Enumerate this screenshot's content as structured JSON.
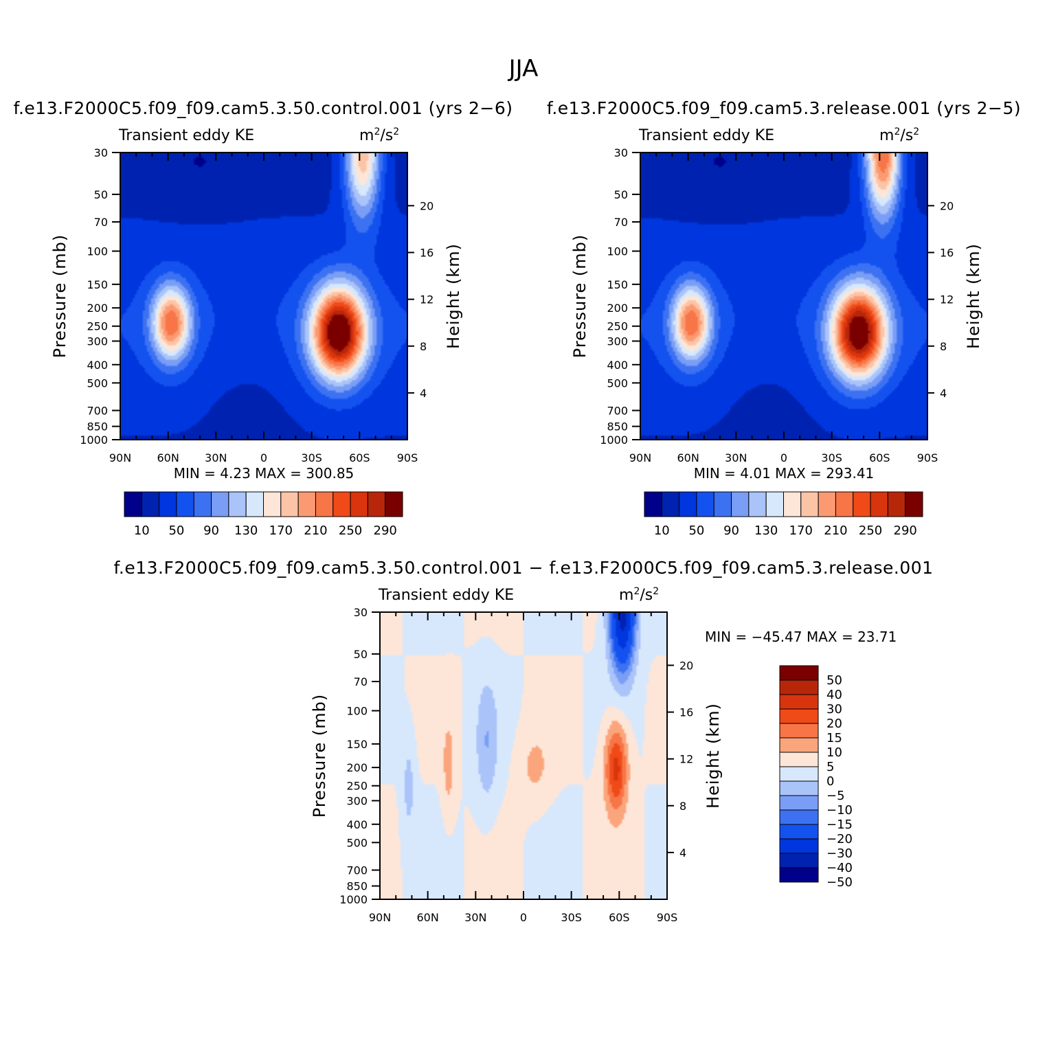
{
  "title": "JJA",
  "panels": [
    {
      "id": "control",
      "title": "f.e13.F2000C5.f09_f09.cam5.3.50.control.001 (yrs 2−6)",
      "left_string": "Transient eddy KE",
      "units_base": "m",
      "units_sup1": "2",
      "units_mid": "/s",
      "units_sup2": "2",
      "ylabel": "Pressure (mb)",
      "ylabel_right": "Height (km)",
      "stats": "MIN =    4.23   MAX = 300.85"
    },
    {
      "id": "release",
      "title": "f.e13.F2000C5.f09_f09.cam5.3.release.001 (yrs 2−5)",
      "left_string": "Transient eddy KE",
      "units_base": "m",
      "units_sup1": "2",
      "units_mid": "/s",
      "units_sup2": "2",
      "ylabel": "Pressure (mb)",
      "ylabel_right": "Height (km)",
      "stats": "MIN =    4.01   MAX = 293.41"
    },
    {
      "id": "difference",
      "title": "f.e13.F2000C5.f09_f09.cam5.3.50.control.001 − f.e13.F2000C5.f09_f09.cam5.3.release.001",
      "left_string": "Transient eddy KE",
      "units_base": "m",
      "units_sup1": "2",
      "units_mid": "/s",
      "units_sup2": "2",
      "ylabel": "Pressure (mb)",
      "ylabel_right": "Height (km)",
      "stats": "MIN = −45.47   MAX =   23.71"
    }
  ],
  "colorbars": {
    "ke": {
      "colors": [
        "#00008b",
        "#0022b0",
        "#0036dd",
        "#1452f0",
        "#3c72f2",
        "#7a9ef5",
        "#aac4fa",
        "#d8e8fc",
        "#fde6d8",
        "#fcc4a6",
        "#fb9a72",
        "#f77546",
        "#f04a18",
        "#d8350e",
        "#b8260a",
        "#7a0000"
      ],
      "tick_labels": [
        "10",
        "50",
        "90",
        "130",
        "170",
        "210",
        "250",
        "290"
      ]
    },
    "diff": {
      "colors_top_to_bottom": [
        "#7a0000",
        "#b8260a",
        "#d8350e",
        "#f04a18",
        "#f77546",
        "#fba57c",
        "#fde6d8",
        "#d8e8fc",
        "#aac4fa",
        "#7a9ef5",
        "#3c72f2",
        "#1452f0",
        "#0036dd",
        "#0022b0",
        "#00008b"
      ],
      "tick_labels": [
        "50",
        "40",
        "30",
        "20",
        "15",
        "10",
        "5",
        "0",
        "−5",
        "−10",
        "−15",
        "−20",
        "−30",
        "−40",
        "−50"
      ]
    }
  },
  "chart_data": [
    {
      "type": "heatmap",
      "title": "f.e13.F2000C5.f09_f09.cam5.3.50.control.001 (yrs 2−6)",
      "variable": "Transient eddy KE",
      "units": "m2/s2",
      "x_tick_labels": [
        "90N",
        "60N",
        "30N",
        "0",
        "30S",
        "60S",
        "90S"
      ],
      "x_values": [
        90,
        60,
        30,
        0,
        -30,
        -60,
        -90
      ],
      "y_pressure_ticks": [
        30,
        50,
        70,
        100,
        150,
        200,
        250,
        300,
        400,
        500,
        700,
        850,
        1000
      ],
      "y_height_ticks": [
        4,
        8,
        12,
        16,
        20
      ],
      "ylim_mb": [
        1000,
        30
      ],
      "xlabel": "",
      "ylabel": "Pressure (mb)",
      "ylabel_right": "Height (km)",
      "contour_levels": [
        10,
        30,
        50,
        70,
        90,
        110,
        130,
        150,
        170,
        190,
        210,
        230,
        250,
        270,
        290
      ],
      "min": 4.23,
      "max": 300.85,
      "features": [
        {
          "name": "SH jet maximum",
          "lat": -45,
          "pressure_mb": 250,
          "value": 300
        },
        {
          "name": "NH jet maximum",
          "lat": 58,
          "pressure_mb": 250,
          "value": 190
        },
        {
          "name": "SH stratospheric maximum",
          "lat": -62,
          "pressure_mb": 30,
          "value": 170
        }
      ]
    },
    {
      "type": "heatmap",
      "title": "f.e13.F2000C5.f09_f09.cam5.3.release.001 (yrs 2−5)",
      "variable": "Transient eddy KE",
      "units": "m2/s2",
      "x_tick_labels": [
        "90N",
        "60N",
        "30N",
        "0",
        "30S",
        "60S",
        "90S"
      ],
      "x_values": [
        90,
        60,
        30,
        0,
        -30,
        -60,
        -90
      ],
      "y_pressure_ticks": [
        30,
        50,
        70,
        100,
        150,
        200,
        250,
        300,
        400,
        500,
        700,
        850,
        1000
      ],
      "y_height_ticks": [
        4,
        8,
        12,
        16,
        20
      ],
      "ylim_mb": [
        1000,
        30
      ],
      "xlabel": "",
      "ylabel": "Pressure (mb)",
      "ylabel_right": "Height (km)",
      "contour_levels": [
        10,
        30,
        50,
        70,
        90,
        110,
        130,
        150,
        170,
        190,
        210,
        230,
        250,
        270,
        290
      ],
      "min": 4.01,
      "max": 293.41,
      "features": [
        {
          "name": "SH jet maximum",
          "lat": -45,
          "pressure_mb": 250,
          "value": 293
        },
        {
          "name": "NH jet maximum",
          "lat": 58,
          "pressure_mb": 250,
          "value": 190
        },
        {
          "name": "SH stratospheric maximum",
          "lat": -62,
          "pressure_mb": 30,
          "value": 210
        }
      ]
    },
    {
      "type": "heatmap",
      "title": "f.e13.F2000C5.f09_f09.cam5.3.50.control.001 − f.e13.F2000C5.f09_f09.cam5.3.release.001",
      "variable": "Transient eddy KE",
      "units": "m2/s2",
      "x_tick_labels": [
        "90N",
        "60N",
        "30N",
        "0",
        "30S",
        "60S",
        "90S"
      ],
      "x_values": [
        90,
        60,
        30,
        0,
        -30,
        -60,
        -90
      ],
      "y_pressure_ticks": [
        30,
        50,
        70,
        100,
        150,
        200,
        250,
        300,
        400,
        500,
        700,
        850,
        1000
      ],
      "y_height_ticks": [
        4,
        8,
        12,
        16,
        20
      ],
      "ylim_mb": [
        1000,
        30
      ],
      "xlabel": "",
      "ylabel": "Pressure (mb)",
      "ylabel_right": "Height (km)",
      "contour_levels": [
        -50,
        -40,
        -30,
        -20,
        -15,
        -10,
        -5,
        0,
        5,
        10,
        15,
        20,
        30,
        40,
        50
      ],
      "min": -45.47,
      "max": 23.71,
      "features": [
        {
          "name": "SH jet positive difference",
          "lat": -58,
          "pressure_mb": 200,
          "value": 20
        },
        {
          "name": "SH stratosphere negative difference",
          "lat": -62,
          "pressure_mb": 30,
          "value": -45
        }
      ]
    }
  ]
}
